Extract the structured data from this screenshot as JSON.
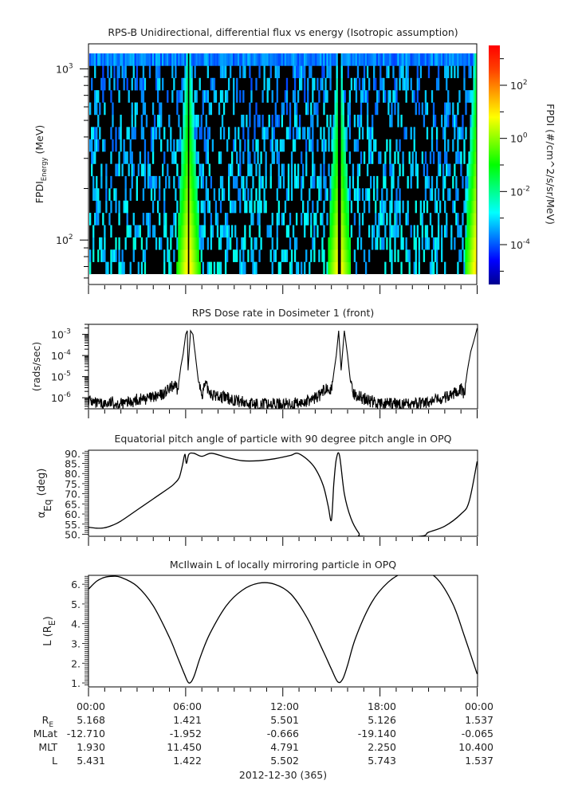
{
  "chart_data": [
    {
      "type": "heatmap",
      "title": "RPS-B  Unidirectional, differential flux vs energy (Isotropic assumption)",
      "ylabel_main": "FPDI",
      "ylabel_sub": "Energy",
      "ylabel_unit": "(MeV)",
      "yscale": "log",
      "ylim": [
        55,
        1400
      ],
      "yticks": [
        {
          "v": 100,
          "base": "10",
          "exp": "2"
        },
        {
          "v": 1000,
          "base": "10",
          "exp": "3"
        }
      ],
      "xlim": [
        0,
        24
      ],
      "energy_bins": 18,
      "peaks_hours": [
        6.15,
        15.5,
        24
      ],
      "colorbar": {
        "label": "FPDI (#/cm^2/s/sr/MeV)",
        "scale": "log",
        "range": [
          -5.5,
          3.5
        ],
        "ticks": [
          {
            "v": -4,
            "base": "10",
            "exp": "-4"
          },
          {
            "v": -2,
            "base": "10",
            "exp": "-2"
          },
          {
            "v": 0,
            "base": "10",
            "exp": "0"
          },
          {
            "v": 2,
            "base": "10",
            "exp": "2"
          }
        ],
        "colors": [
          "#00008f",
          "#0000ff",
          "#0080ff",
          "#00ffff",
          "#00ff80",
          "#00ff00",
          "#80ff00",
          "#ffff00",
          "#ffa000",
          "#ff4000",
          "#ff0000"
        ]
      }
    },
    {
      "type": "line",
      "title": "RPS  Dose rate in Dosimeter 1 (front)",
      "ylabel": "(rads/sec)",
      "yscale": "log",
      "ylim": [
        3e-07,
        0.003
      ],
      "yticks": [
        {
          "v": 1e-06,
          "base": "10",
          "exp": "-6"
        },
        {
          "v": 1e-05,
          "base": "10",
          "exp": "-5"
        },
        {
          "v": 0.0001,
          "base": "10",
          "exp": "-4"
        },
        {
          "v": 0.001,
          "base": "10",
          "exp": "-3"
        }
      ],
      "xlim": [
        0,
        24
      ],
      "x": [
        0,
        0.5,
        1,
        1.5,
        2,
        2.5,
        3,
        3.5,
        4,
        4.5,
        5,
        5.3,
        5.5,
        5.7,
        5.85,
        6.0,
        6.1,
        6.15,
        6.3,
        6.45,
        6.6,
        6.8,
        7.0,
        7.2,
        7.4,
        7.7,
        8,
        9,
        10,
        11,
        12,
        13,
        13.5,
        14,
        14.3,
        14.6,
        14.8,
        15.0,
        15.2,
        15.3,
        15.45,
        15.6,
        15.8,
        16.0,
        16.2,
        16.4,
        16.6,
        17,
        18,
        19,
        20,
        21,
        22,
        22.5,
        23,
        23.2,
        23.4,
        23.6,
        23.8,
        24
      ],
      "values": [
        8e-07,
        5e-07,
        5e-07,
        6e-07,
        5e-07,
        6e-07,
        8e-07,
        9e-07,
        1e-06,
        1.3e-06,
        2.5e-06,
        4e-06,
        2e-06,
        3e-05,
        0.00012,
        0.001,
        0.0015,
        2e-05,
        0.0015,
        0.001,
        0.0001,
        5e-06,
        1.5e-06,
        4e-06,
        2.5e-06,
        1.3e-06,
        1.2e-06,
        8e-07,
        5e-07,
        5e-07,
        5e-07,
        5e-07,
        7e-07,
        1e-06,
        1.3e-06,
        2.5e-06,
        4e-06,
        2e-06,
        3e-05,
        0.0001,
        0.0015,
        2e-05,
        0.0015,
        0.0001,
        4e-06,
        1.5e-06,
        1.3e-06,
        9e-07,
        5e-07,
        5e-07,
        5e-07,
        6e-07,
        1e-06,
        1.5e-06,
        3e-06,
        1.5e-06,
        2e-05,
        0.00015,
        0.0005,
        0.002
      ]
    },
    {
      "type": "line",
      "title": "Equatorial pitch angle of particle with 90 degree pitch angle in OPQ",
      "ylabel_main": "α",
      "ylabel_sub": "Eq",
      "ylabel_unit": "(deg)",
      "ylim": [
        49,
        91.5
      ],
      "yticks": [
        "50.",
        "55.",
        "60.",
        "65.",
        "70.",
        "75.",
        "80.",
        "85.",
        "90."
      ],
      "xlim": [
        0,
        24
      ],
      "x": [
        0,
        0.5,
        1,
        1.5,
        2,
        3,
        4,
        5,
        5.3,
        5.6,
        5.8,
        5.95,
        6.05,
        6.2,
        6.5,
        7.0,
        7.6,
        8.5,
        9.5,
        10.5,
        11.5,
        12.5,
        12.9,
        13.5,
        14.0,
        14.5,
        14.8,
        15.0,
        15.15,
        15.3,
        15.5,
        15.8,
        16.2,
        16.7,
        17.0,
        20.4,
        21,
        22,
        23,
        23.5,
        24
      ],
      "values": [
        53.5,
        53,
        53.2,
        54.5,
        56.5,
        62,
        67.5,
        73,
        75,
        78,
        84,
        89.5,
        85,
        89.5,
        90,
        88.5,
        90,
        88,
        86.3,
        86.3,
        87.3,
        89,
        90,
        87,
        82.5,
        74,
        64,
        57,
        75,
        87,
        89,
        70,
        58,
        50.5,
        49,
        49,
        51,
        54,
        60,
        66,
        86
      ]
    },
    {
      "type": "line",
      "title": "McIlwain L of locally mirroring particle in OPQ",
      "ylabel_main": "L (R",
      "ylabel_sub": "E",
      "ylabel_unit": ")",
      "ylim": [
        0.8,
        6.45
      ],
      "yticks": [
        "1.",
        "2.",
        "3.",
        "4.",
        "5.",
        "6."
      ],
      "xlim": [
        0,
        24
      ],
      "x": [
        0,
        0.5,
        1,
        1.5,
        2,
        3,
        4,
        5,
        5.5,
        5.9,
        6.2,
        6.5,
        6.9,
        7.5,
        8.5,
        9.5,
        10.5,
        11.5,
        12.5,
        13.5,
        14.5,
        15.0,
        15.4,
        15.7,
        16.0,
        16.5,
        17.5,
        18.5,
        19.5,
        20.5,
        21.5,
        22.5,
        23.2,
        24
      ],
      "values": [
        5.75,
        6.15,
        6.35,
        6.4,
        6.35,
        5.9,
        4.9,
        3.3,
        2.3,
        1.5,
        1.0,
        1.3,
        2.3,
        3.5,
        4.9,
        5.7,
        6.05,
        6.0,
        5.5,
        4.3,
        2.6,
        1.7,
        1.05,
        1.2,
        1.9,
        3.3,
        5.1,
        6.1,
        6.6,
        6.7,
        6.3,
        5.0,
        3.4,
        1.45
      ]
    }
  ],
  "xaxis": {
    "tick_labels": [
      "00:00",
      "06:00",
      "12:00",
      "18:00",
      "00:00"
    ],
    "minor_per_major": 6
  },
  "ephemeris": {
    "rows": [
      {
        "label": "R",
        "label_sub": "E",
        "values": [
          "5.168",
          "1.421",
          "5.501",
          "5.126",
          "1.537"
        ]
      },
      {
        "label": "MLat",
        "label_sub": "",
        "values": [
          "-12.710",
          "-1.952",
          "-0.666",
          "-19.140",
          "-0.065"
        ]
      },
      {
        "label": "MLT",
        "label_sub": "",
        "values": [
          "1.930",
          "11.450",
          "4.791",
          "2.250",
          "10.400"
        ]
      },
      {
        "label": "L",
        "label_sub": "",
        "values": [
          "5.431",
          "1.422",
          "5.502",
          "5.743",
          "1.537"
        ]
      }
    ],
    "date": "2012-12-30 (365)"
  }
}
